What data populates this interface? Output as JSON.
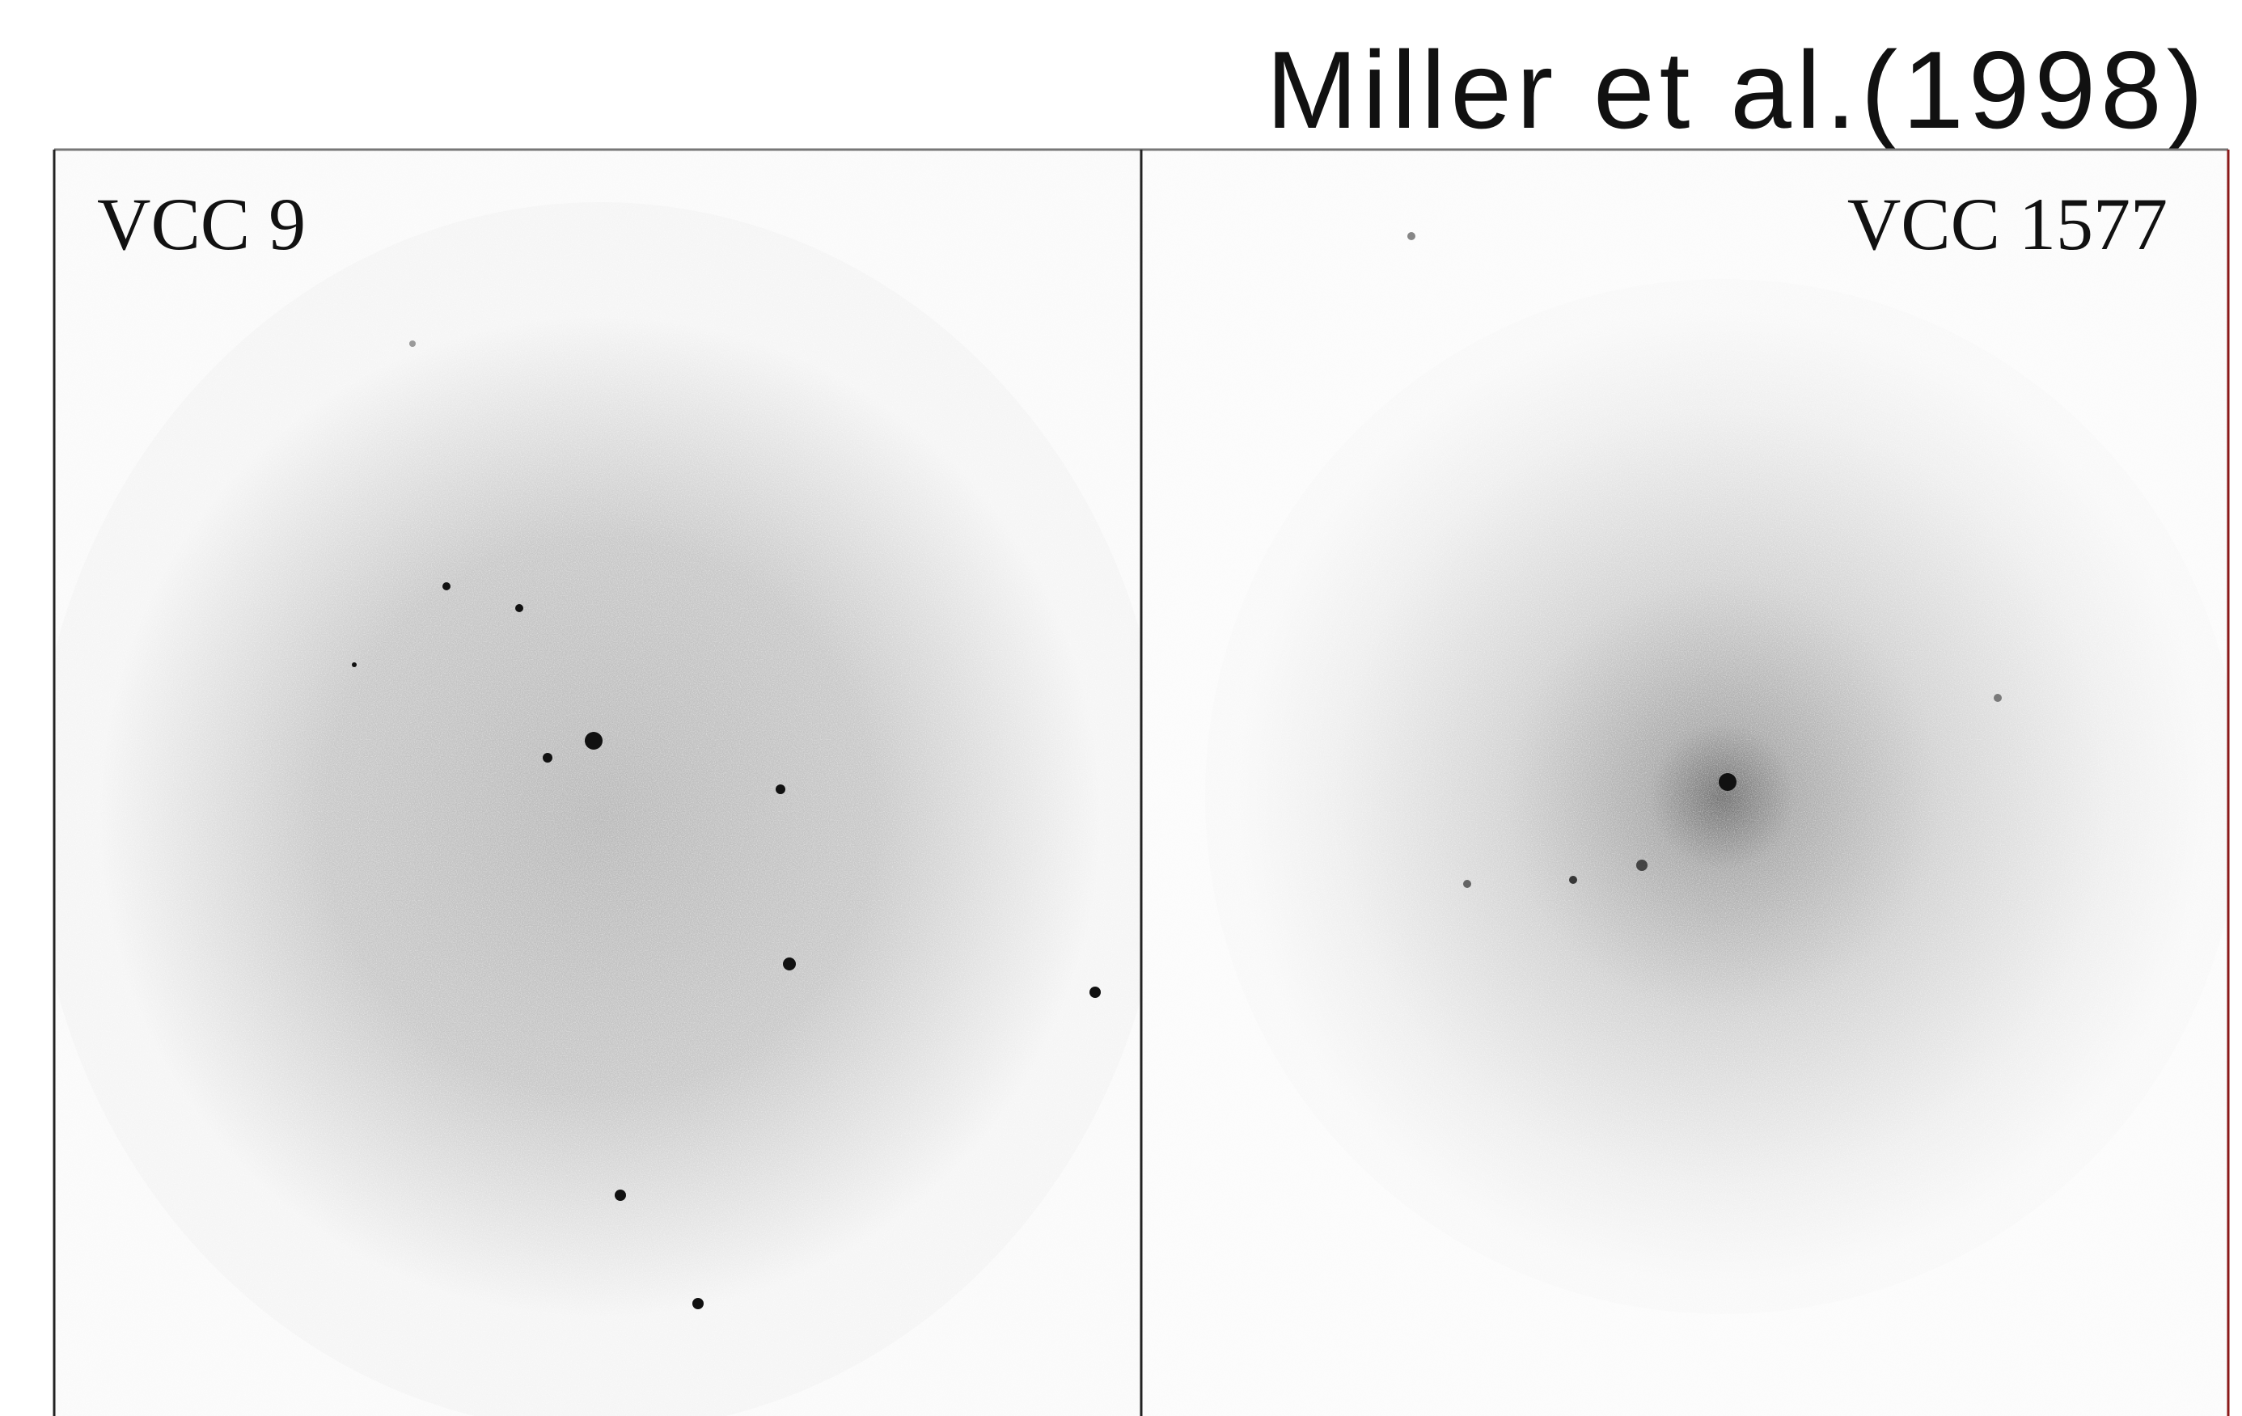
{
  "title": "Miller et al.(1998)",
  "panels": [
    {
      "label": "VCC 9"
    },
    {
      "label": "VCC 1577"
    }
  ]
}
